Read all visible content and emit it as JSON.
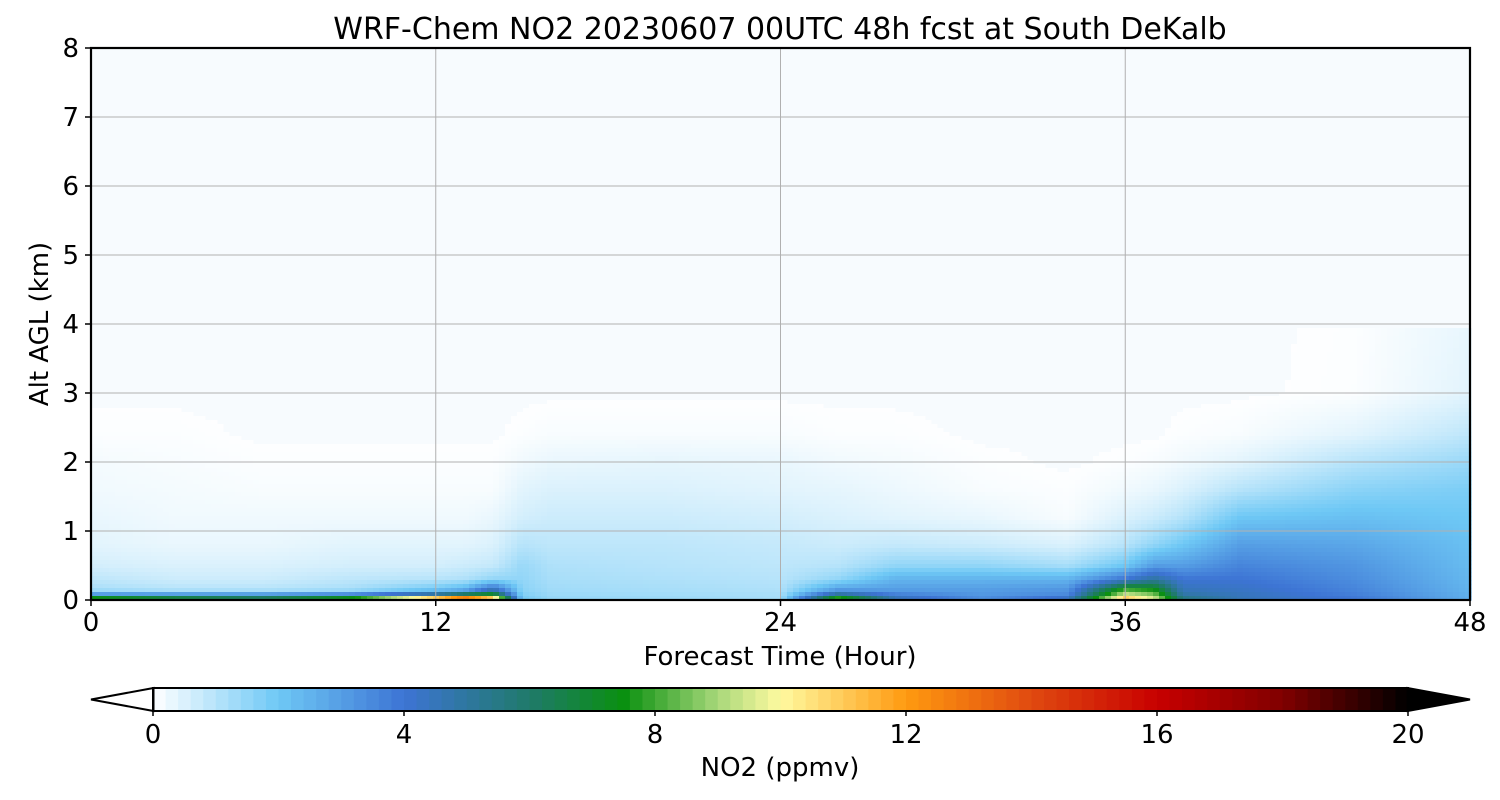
{
  "chart_data": {
    "type": "heatmap",
    "title": "WRF-Chem NO2  20230607 00UTC 48h fcst at South DeKalb",
    "xlabel": "Forecast Time (Hour)",
    "ylabel": "Alt AGL (km)",
    "xlim": [
      0,
      48
    ],
    "ylim": [
      0,
      8
    ],
    "x_ticks": [
      0,
      12,
      24,
      36,
      48
    ],
    "y_ticks": [
      0,
      1,
      2,
      3,
      4,
      5,
      6,
      7,
      8
    ],
    "grid": true,
    "colorbar": {
      "label": "NO2  (ppmv)",
      "min": 0,
      "max": 20,
      "ticks": [
        0,
        4,
        8,
        12,
        16,
        20
      ],
      "extend": "both",
      "orientation": "horizontal",
      "placement": "bottom",
      "stops": [
        {
          "v": 0,
          "c": "#ffffff"
        },
        {
          "v": 2,
          "c": "#6ec8f5"
        },
        {
          "v": 4,
          "c": "#3d74d4"
        },
        {
          "v": 6,
          "c": "#1f7a6a"
        },
        {
          "v": 7.5,
          "c": "#0a9010"
        },
        {
          "v": 9,
          "c": "#a8d87a"
        },
        {
          "v": 10,
          "c": "#fffaa0"
        },
        {
          "v": 12,
          "c": "#ff9a10"
        },
        {
          "v": 14,
          "c": "#e04a10"
        },
        {
          "v": 16,
          "c": "#c80000"
        },
        {
          "v": 18,
          "c": "#800000"
        },
        {
          "v": 20,
          "c": "#000000"
        }
      ]
    },
    "times_h": [
      0,
      3,
      6,
      9,
      12,
      13,
      14,
      15,
      16,
      20,
      24,
      26,
      28,
      31,
      34,
      36,
      37,
      38,
      40,
      44,
      48
    ],
    "heights_km": [
      0,
      0.05,
      0.15,
      0.3,
      0.5,
      0.8,
      1.2,
      1.6,
      2.0,
      2.4,
      3.0,
      8.0
    ],
    "no2_ppmv": [
      [
        12,
        4.0,
        1.2,
        0.9,
        0.6,
        0.4,
        0.3,
        0.2,
        0.15,
        0.05,
        0.0,
        0.0
      ],
      [
        10,
        4.0,
        1.0,
        0.7,
        0.5,
        0.3,
        0.2,
        0.15,
        0.1,
        0.05,
        0.0,
        0.0
      ],
      [
        9,
        4.0,
        1.0,
        0.7,
        0.5,
        0.3,
        0.2,
        0.1,
        0.05,
        0.0,
        0.0,
        0.0
      ],
      [
        11,
        4.5,
        1.2,
        0.9,
        0.6,
        0.4,
        0.2,
        0.1,
        0.05,
        0.0,
        0.0,
        0.0
      ],
      [
        17,
        6.5,
        2.0,
        1.0,
        0.6,
        0.4,
        0.2,
        0.1,
        0.05,
        0.0,
        0.0,
        0.0
      ],
      [
        19,
        8.0,
        2.5,
        1.1,
        0.7,
        0.4,
        0.2,
        0.1,
        0.05,
        0.0,
        0.0,
        0.0
      ],
      [
        14,
        8.5,
        4.5,
        1.5,
        0.8,
        0.5,
        0.3,
        0.1,
        0.05,
        0.0,
        0.0,
        0.0
      ],
      [
        2.0,
        1.8,
        1.6,
        1.5,
        1.4,
        1.0,
        0.6,
        0.4,
        0.2,
        0.05,
        0.0,
        0.0
      ],
      [
        1.5,
        1.4,
        1.3,
        1.2,
        1.1,
        0.9,
        0.7,
        0.5,
        0.3,
        0.1,
        0.0,
        0.0
      ],
      [
        1.4,
        1.3,
        1.2,
        1.1,
        1.0,
        0.9,
        0.7,
        0.5,
        0.35,
        0.1,
        0.0,
        0.0
      ],
      [
        1.2,
        1.2,
        1.1,
        1.0,
        0.9,
        0.8,
        0.6,
        0.4,
        0.3,
        0.1,
        0.0,
        0.0
      ],
      [
        10,
        6.0,
        3.0,
        1.5,
        1.0,
        0.7,
        0.5,
        0.35,
        0.2,
        0.05,
        0.0,
        0.0
      ],
      [
        5,
        4.0,
        3.0,
        2.5,
        1.5,
        0.8,
        0.4,
        0.25,
        0.15,
        0.05,
        0.0,
        0.0
      ],
      [
        3.5,
        3.2,
        3.0,
        2.5,
        1.5,
        0.7,
        0.3,
        0.1,
        0.05,
        0.0,
        0.0,
        0.0
      ],
      [
        5,
        3.6,
        3.2,
        2.5,
        1.2,
        0.5,
        0.1,
        0.05,
        0.0,
        0.0,
        0.0,
        0.0
      ],
      [
        12,
        10,
        8.0,
        4.0,
        2.0,
        1.0,
        0.5,
        0.2,
        0.05,
        0.0,
        0.0,
        0.0
      ],
      [
        10,
        9.0,
        7.5,
        5.0,
        3.0,
        1.5,
        0.7,
        0.3,
        0.1,
        0.0,
        0.0,
        0.0
      ],
      [
        6,
        5.0,
        4.5,
        4.0,
        3.0,
        2.0,
        1.0,
        0.5,
        0.2,
        0.05,
        0.0,
        0.0
      ],
      [
        4.5,
        4.5,
        4.3,
        4.0,
        3.6,
        3.0,
        2.0,
        1.0,
        0.4,
        0.1,
        0.0,
        0.0
      ],
      [
        4.0,
        3.8,
        3.6,
        3.4,
        3.2,
        2.8,
        2.2,
        1.6,
        1.0,
        0.4,
        0.05,
        0.0
      ],
      [
        2.6,
        2.6,
        2.5,
        2.4,
        2.3,
        2.2,
        2.0,
        1.8,
        1.4,
        0.9,
        0.4,
        0.0
      ]
    ]
  }
}
